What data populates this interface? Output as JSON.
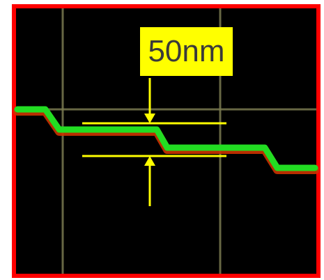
{
  "annotation": {
    "label": "50nm"
  },
  "colors": {
    "frame_border": "#ff0000",
    "background": "#000000",
    "profile_line": "#22dd22",
    "profile_edge": "#cc3300",
    "gridlines": "#7a7a50",
    "marker": "#ffff00"
  }
}
